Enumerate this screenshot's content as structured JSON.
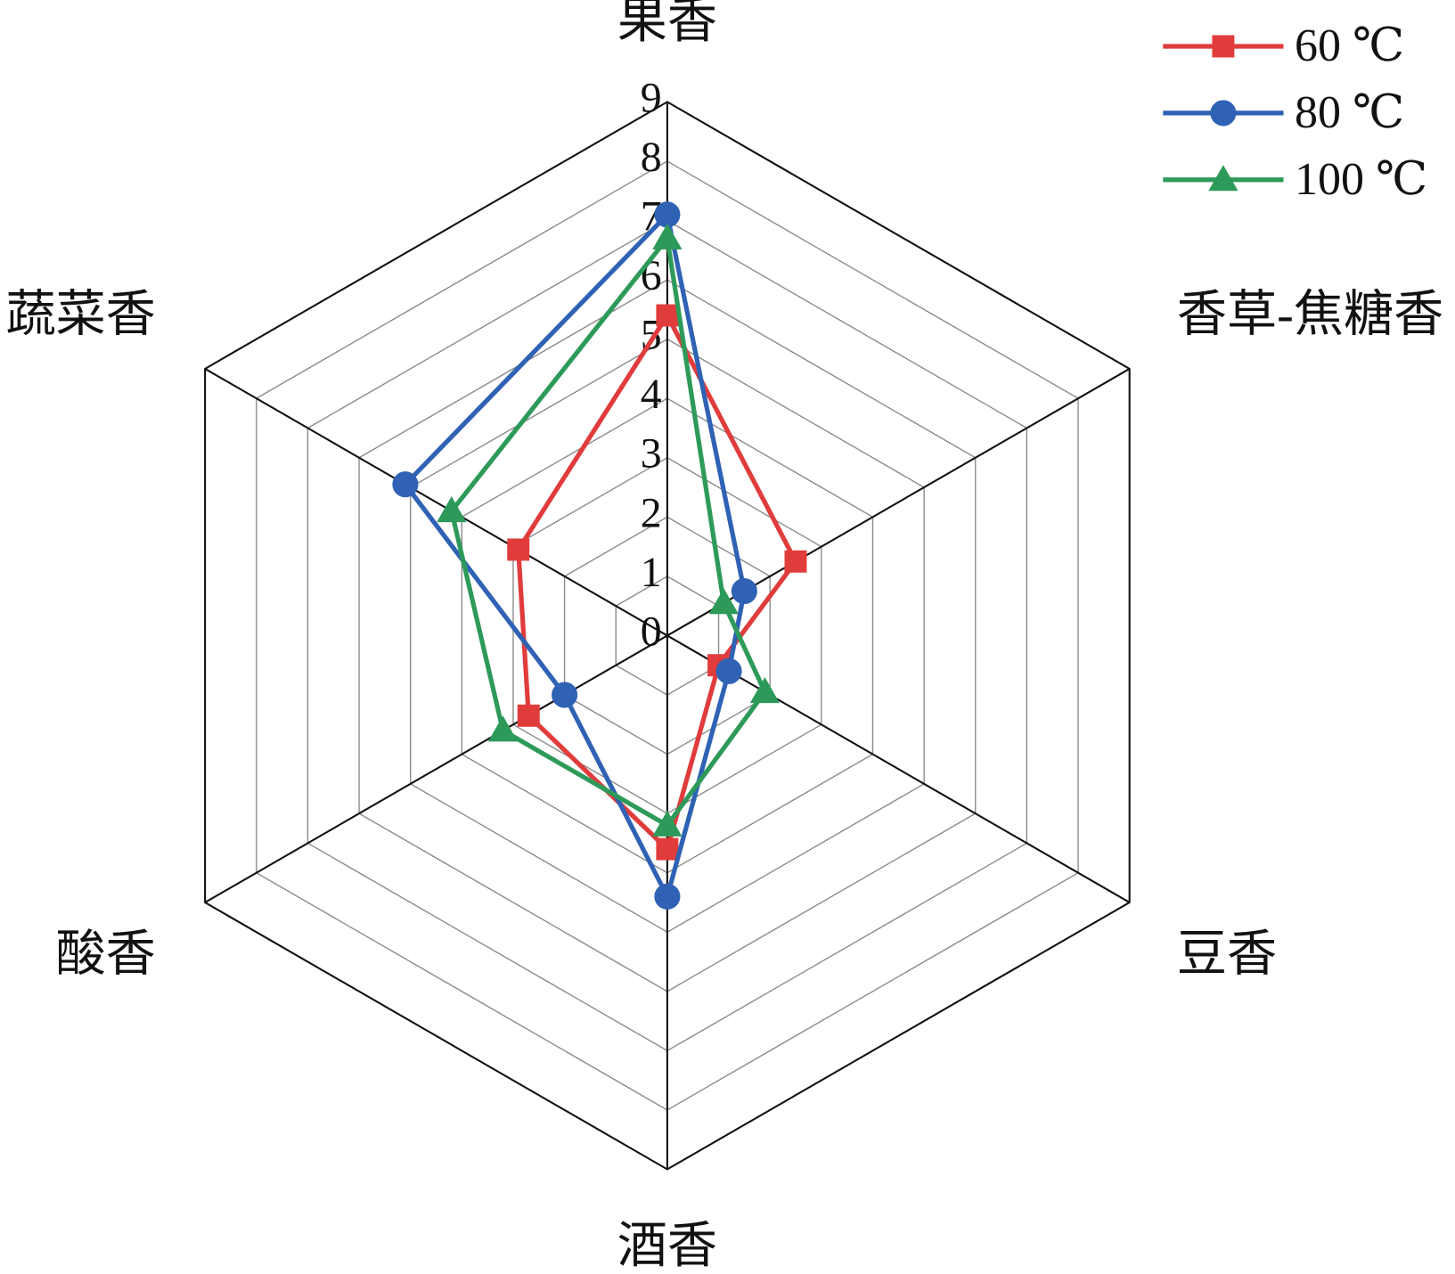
{
  "chart_data": {
    "type": "radar",
    "categories": [
      "果香",
      "香草-焦糖香",
      "豆香",
      "酒香",
      "酸香",
      "蔬菜香"
    ],
    "ylim": [
      0,
      9
    ],
    "yticks": [
      0,
      1,
      2,
      3,
      4,
      5,
      6,
      7,
      8,
      9
    ],
    "grid": true,
    "legend": "top-right",
    "series": [
      {
        "name": "60 ℃",
        "color": "#e03c3c",
        "marker": "square",
        "values": [
          5.4,
          2.5,
          1.0,
          3.6,
          2.7,
          2.9
        ]
      },
      {
        "name": "80 ℃",
        "color": "#2f62b4",
        "marker": "circle",
        "values": [
          7.1,
          1.5,
          1.2,
          4.4,
          2.0,
          5.1
        ]
      },
      {
        "name": "100 ℃",
        "color": "#2e9a5a",
        "marker": "triangle",
        "values": [
          6.7,
          1.1,
          1.9,
          3.2,
          3.2,
          4.2
        ]
      }
    ]
  }
}
